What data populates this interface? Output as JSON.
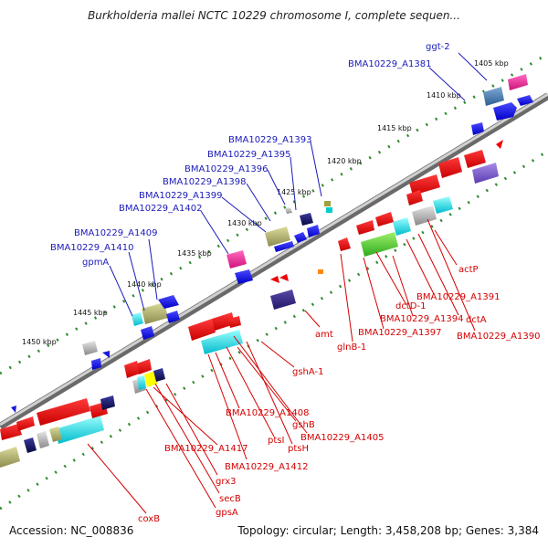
{
  "title": "Burkholderia mallei NCTC 10229 chromosome I, complete sequen...",
  "footer": {
    "accession": "Accession: NC_008836",
    "summary": "Topology: circular; Length: 3,458,208 bp; Genes: 3,384"
  },
  "colors": {
    "forward_label": "#1a1ab8",
    "reverse_label": "#d40000",
    "backbone": "#9a9a9a",
    "tick_dots": "#2e8b2e"
  },
  "ticks": [
    "1405 kbp",
    "1410 kbp",
    "1415 kbp",
    "1420 kbp",
    "1425 kbp",
    "1430 kbp",
    "1435 kbp",
    "1440 kbp",
    "1445 kbp",
    "1450 kbp"
  ],
  "top_labels": [
    "ggt-2",
    "BMA10229_A1381",
    "BMA10229_A1393",
    "BMA10229_A1395",
    "BMA10229_A1396",
    "BMA10229_A1398",
    "BMA10229_A1399",
    "BMA10229_A1402",
    "BMA10229_A1409",
    "BMA10229_A1410",
    "gpmA"
  ],
  "bottom_labels": [
    "actP",
    "BMA10229_A1391",
    "dctD-1",
    "dctA",
    "BMA10229_A1394",
    "BMA10229_A1390",
    "BMA10229_A1397",
    "glnB-1",
    "amt",
    "gshA-1",
    "BMA10229_A1408",
    "gshB",
    "BMA10229_A1405",
    "ptsI",
    "ptsH",
    "BMA10229_A1417",
    "BMA10229_A1412",
    "grx3",
    "secB",
    "gpsA",
    "coxB"
  ]
}
